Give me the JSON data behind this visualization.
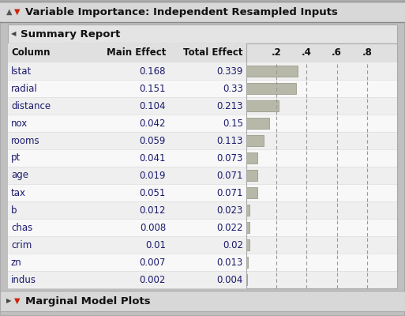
{
  "title": "Variable Importance: Independent Resampled Inputs",
  "subtitle": "Summary Report",
  "footer": "Marginal Model Plots",
  "rows": [
    {
      "name": "lstat",
      "main": "0.168",
      "total": "0.339",
      "main_v": 0.168,
      "total_v": 0.339
    },
    {
      "name": "radial",
      "main": "0.151",
      "total": "0.33",
      "main_v": 0.151,
      "total_v": 0.33
    },
    {
      "name": "distance",
      "main": "0.104",
      "total": "0.213",
      "main_v": 0.104,
      "total_v": 0.213
    },
    {
      "name": "nox",
      "main": "0.042",
      "total": "0.15",
      "main_v": 0.042,
      "total_v": 0.15
    },
    {
      "name": "rooms",
      "main": "0.059",
      "total": "0.113",
      "main_v": 0.059,
      "total_v": 0.113
    },
    {
      "name": "pt",
      "main": "0.041",
      "total": "0.073",
      "main_v": 0.041,
      "total_v": 0.073
    },
    {
      "name": "age",
      "main": "0.019",
      "total": "0.071",
      "main_v": 0.019,
      "total_v": 0.071
    },
    {
      "name": "tax",
      "main": "0.051",
      "total": "0.071",
      "main_v": 0.051,
      "total_v": 0.071
    },
    {
      "name": "b",
      "main": "0.012",
      "total": "0.023",
      "main_v": 0.012,
      "total_v": 0.023
    },
    {
      "name": "chas",
      "main": "0.008",
      "total": "0.022",
      "main_v": 0.008,
      "total_v": 0.022
    },
    {
      "name": "crim",
      "main": "0.01",
      "total": "0.02",
      "main_v": 0.01,
      "total_v": 0.02
    },
    {
      "name": "zn",
      "main": "0.007",
      "total": "0.013",
      "main_v": 0.007,
      "total_v": 0.013
    },
    {
      "name": "indus",
      "main": "0.002",
      "total": "0.004",
      "main_v": 0.002,
      "total_v": 0.004
    }
  ],
  "bar_ticks": [
    0.2,
    0.4,
    0.6,
    0.8
  ],
  "bar_scale_max": 1.0,
  "outer_bg": "#c0c0c0",
  "title_bg": "#d8d8d8",
  "subtitle_bg": "#e4e4e4",
  "table_bg": "#f5f5f5",
  "header_bg": "#e0e0e0",
  "row_bg_even": "#efefef",
  "row_bg_odd": "#f8f8f8",
  "bar_color": "#b8b8a8",
  "bar_border_color": "#909080",
  "border_color": "#aaaaaa",
  "text_color": "#1a1a6e",
  "header_text_color": "#111111",
  "title_font_size": 9.5,
  "header_font_size": 8.5,
  "row_font_size": 8.5,
  "footer_font_size": 9.5
}
